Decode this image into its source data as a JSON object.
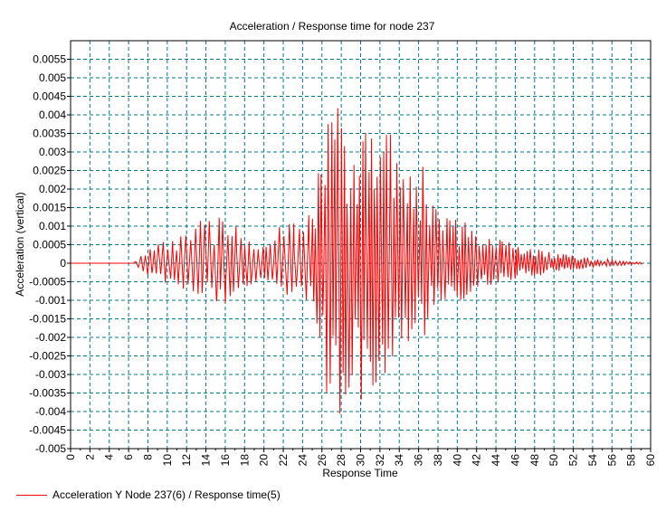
{
  "colors": {
    "series": "#ff0000",
    "grid": "#007a8c",
    "axis": "#000000",
    "background": "#ffffff"
  },
  "chart_data": {
    "type": "line",
    "title": "Acceleration / Response time for node 237",
    "xlabel": "Response Time",
    "ylabel": "Acceleration (vertical)",
    "xlim": [
      0,
      60
    ],
    "ylim": [
      -0.005,
      0.006
    ],
    "grid": true,
    "legend_position": "bottom-left",
    "x_ticks": [
      "0",
      "2",
      "4",
      "6",
      "8",
      "10",
      "12",
      "14",
      "16",
      "18",
      "20",
      "22",
      "24",
      "26",
      "28",
      "30",
      "32",
      "34",
      "36",
      "38",
      "40",
      "42",
      "44",
      "46",
      "48",
      "50",
      "52",
      "54",
      "56",
      "58",
      "60"
    ],
    "y_ticks": [
      "0.0055",
      "0.005",
      "0.0045",
      "0.004",
      "0.0035",
      "0.003",
      "0.0025",
      "0.002",
      "0.0015",
      "0.001",
      "0.0005",
      "0",
      "-0.0005",
      "-0.001",
      "-0.0015",
      "-0.002",
      "-0.0025",
      "-0.003",
      "-0.0035",
      "-0.004",
      "-0.0045",
      "-0.005"
    ],
    "series": [
      {
        "name": "Acceleration Y Node 237(6) / Response time(5)",
        "color": "#ff0000",
        "envelope_x": [
          0,
          6.5,
          7,
          8,
          9,
          10,
          11,
          12,
          13,
          14,
          15,
          16,
          17,
          18,
          19,
          20,
          21,
          22,
          23,
          24,
          25,
          25.5,
          26,
          26.5,
          27,
          27.5,
          28,
          28.5,
          29,
          29.5,
          30,
          30.5,
          31,
          31.5,
          32,
          32.5,
          33,
          33.5,
          34,
          34.5,
          35,
          35.5,
          36,
          36.5,
          37,
          38,
          39,
          40,
          41,
          42,
          43,
          44,
          45,
          46,
          47,
          48,
          49,
          50,
          51,
          52,
          53,
          54,
          55,
          56,
          57,
          58,
          59
        ],
        "envelope_amp": [
          0,
          0,
          0.00015,
          0.0004,
          0.0005,
          0.0007,
          0.0009,
          0.001,
          0.0011,
          0.0012,
          0.0013,
          0.0013,
          0.0011,
          0.0009,
          0.0006,
          0.0005,
          0.0008,
          0.0011,
          0.0011,
          0.0012,
          0.0015,
          0.0025,
          0.003,
          0.0036,
          0.0043,
          0.0043,
          0.004,
          0.0035,
          0.0033,
          0.003,
          0.0038,
          0.0038,
          0.0036,
          0.0032,
          0.0035,
          0.0038,
          0.0036,
          0.0032,
          0.0028,
          0.0026,
          0.0025,
          0.0026,
          0.0028,
          0.0026,
          0.0018,
          0.0015,
          0.0012,
          0.0012,
          0.0011,
          0.0009,
          0.0007,
          0.0007,
          0.0006,
          0.0005,
          0.0004,
          0.0004,
          0.0004,
          0.0003,
          0.00025,
          0.0002,
          0.00018,
          0.00015,
          0.00012,
          0.0001,
          8e-05,
          5e-05,
          3e-05
        ]
      }
    ]
  },
  "legend": {
    "label": "Acceleration Y Node 237(6) / Response time(5)"
  }
}
